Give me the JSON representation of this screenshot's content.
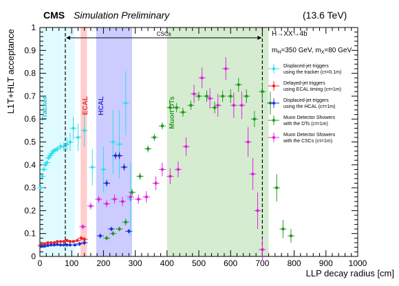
{
  "header": {
    "experiment": "CMS",
    "status": "Simulation Preliminary",
    "energy": "(13.6 TeV)"
  },
  "annotations": {
    "process": "H→XX→4b",
    "masses": "m_H=350 GeV, m_X=80 GeV",
    "cscs": "CSCs"
  },
  "regions": [
    {
      "name": "Tracker",
      "from": 0,
      "to": 110,
      "color": "#e0fbff",
      "label_color": "#2bb7c9"
    },
    {
      "name": "ECAL",
      "from": 128,
      "to": 148,
      "color": "#ffcccc",
      "label_color": "#e8323c"
    },
    {
      "name": "HCAL",
      "from": 177,
      "to": 290,
      "color": "#ccccff",
      "label_color": "#3333dd"
    },
    {
      "name": "Muon DTs",
      "from": 400,
      "to": 720,
      "color": "#d5ecd0",
      "label_color": "#2e9a2e"
    }
  ],
  "colors": {
    "tracker": "#33ddf0",
    "ecal": "#ee2222",
    "hcal": "#1f2fd6",
    "dt": "#229922",
    "csc": "#e022e0"
  },
  "chart_data": {
    "type": "scatter",
    "title": "",
    "xlabel": "LLP decay radius [cm]",
    "ylabel": "L1T+HLT acceptance",
    "xlim": [
      0,
      1000
    ],
    "ylim": [
      0,
      1
    ],
    "x_ticks": [
      0,
      100,
      200,
      300,
      400,
      500,
      600,
      700,
      800,
      900,
      1000
    ],
    "y_ticks": [
      0,
      0.1,
      0.2,
      0.3,
      0.4,
      0.5,
      0.6,
      0.7,
      0.8,
      0.9,
      1
    ],
    "csc_range": [
      80,
      700
    ],
    "legend_position": "right",
    "series": [
      {
        "name": "Displaced-jet triggers using the tracker (cτ=0.1m)",
        "color_key": "tracker",
        "points": [
          {
            "x": 2,
            "y": 0.3,
            "yerr": 0.01
          },
          {
            "x": 7,
            "y": 0.35,
            "yerr": 0.01
          },
          {
            "x": 12,
            "y": 0.38,
            "yerr": 0.01
          },
          {
            "x": 17,
            "y": 0.4,
            "yerr": 0.01
          },
          {
            "x": 22,
            "y": 0.41,
            "yerr": 0.01
          },
          {
            "x": 27,
            "y": 0.43,
            "yerr": 0.01
          },
          {
            "x": 32,
            "y": 0.44,
            "yerr": 0.01
          },
          {
            "x": 37,
            "y": 0.45,
            "yerr": 0.01
          },
          {
            "x": 43,
            "y": 0.46,
            "yerr": 0.01
          },
          {
            "x": 48,
            "y": 0.465,
            "yerr": 0.01
          },
          {
            "x": 55,
            "y": 0.47,
            "yerr": 0.012
          },
          {
            "x": 65,
            "y": 0.48,
            "yerr": 0.015
          },
          {
            "x": 75,
            "y": 0.48,
            "yerr": 0.02
          },
          {
            "x": 85,
            "y": 0.49,
            "yerr": 0.03
          },
          {
            "x": 95,
            "y": 0.5,
            "yerr": 0.04
          },
          {
            "x": 105,
            "y": 0.56,
            "yerr": 0.05
          },
          {
            "x": 120,
            "y": 0.52,
            "yerr": 0.06
          },
          {
            "x": 140,
            "y": 0.55,
            "yerr": 0.07
          },
          {
            "x": 165,
            "y": 0.39,
            "yerr": 0.08
          },
          {
            "x": 200,
            "y": 0.38,
            "yerr": 0.1
          },
          {
            "x": 230,
            "y": 0.5,
            "yerr": 0.14
          },
          {
            "x": 250,
            "y": 0.49,
            "yerr": 0.15
          },
          {
            "x": 270,
            "y": 0.67,
            "yerr": 0.14
          },
          {
            "x": 285,
            "y": 0.25,
            "yerr": 0.16
          }
        ]
      },
      {
        "name": "Delayed-jet triggers using ECAL timing (cτ=1m)",
        "color_key": "ecal",
        "points": [
          {
            "x": 5,
            "y": 0.05,
            "yerr": 0.005
          },
          {
            "x": 15,
            "y": 0.055,
            "yerr": 0.005
          },
          {
            "x": 25,
            "y": 0.06,
            "yerr": 0.005
          },
          {
            "x": 35,
            "y": 0.06,
            "yerr": 0.005
          },
          {
            "x": 45,
            "y": 0.06,
            "yerr": 0.005
          },
          {
            "x": 55,
            "y": 0.065,
            "yerr": 0.005
          },
          {
            "x": 65,
            "y": 0.065,
            "yerr": 0.005
          },
          {
            "x": 75,
            "y": 0.065,
            "yerr": 0.005
          },
          {
            "x": 85,
            "y": 0.07,
            "yerr": 0.005
          },
          {
            "x": 95,
            "y": 0.065,
            "yerr": 0.005
          },
          {
            "x": 105,
            "y": 0.065,
            "yerr": 0.005
          },
          {
            "x": 118,
            "y": 0.07,
            "yerr": 0.005
          },
          {
            "x": 130,
            "y": 0.08,
            "yerr": 0.01
          },
          {
            "x": 140,
            "y": 0.075,
            "yerr": 0.01
          }
        ]
      },
      {
        "name": "Displaced-jet triggers using the HCAL (cτ=1m)",
        "color_key": "hcal",
        "points": [
          {
            "x": 5,
            "y": 0.045,
            "yerr": 0.005
          },
          {
            "x": 15,
            "y": 0.045,
            "yerr": 0.005
          },
          {
            "x": 25,
            "y": 0.048,
            "yerr": 0.005
          },
          {
            "x": 35,
            "y": 0.05,
            "yerr": 0.005
          },
          {
            "x": 45,
            "y": 0.05,
            "yerr": 0.005
          },
          {
            "x": 55,
            "y": 0.052,
            "yerr": 0.005
          },
          {
            "x": 65,
            "y": 0.05,
            "yerr": 0.005
          },
          {
            "x": 75,
            "y": 0.05,
            "yerr": 0.005
          },
          {
            "x": 85,
            "y": 0.05,
            "yerr": 0.005
          },
          {
            "x": 95,
            "y": 0.05,
            "yerr": 0.005
          },
          {
            "x": 110,
            "y": 0.05,
            "yerr": 0.005
          },
          {
            "x": 125,
            "y": 0.055,
            "yerr": 0.01
          },
          {
            "x": 140,
            "y": 0.06,
            "yerr": 0.01
          },
          {
            "x": 190,
            "y": 0.09,
            "yerr": 0.01
          },
          {
            "x": 210,
            "y": 0.32,
            "yerr": 0.015
          },
          {
            "x": 225,
            "y": 0.12,
            "yerr": 0.01
          },
          {
            "x": 238,
            "y": 0.44,
            "yerr": 0.015
          },
          {
            "x": 250,
            "y": 0.44,
            "yerr": 0.015
          },
          {
            "x": 265,
            "y": 0.39,
            "yerr": 0.015
          },
          {
            "x": 280,
            "y": 0.11,
            "yerr": 0.01
          }
        ]
      },
      {
        "name": "Muon Detector Showers with the DTs (cτ=1m)",
        "color_key": "dt",
        "points": [
          {
            "x": 210,
            "y": 0.08,
            "yerr": 0.01
          },
          {
            "x": 230,
            "y": 0.1,
            "yerr": 0.01
          },
          {
            "x": 250,
            "y": 0.12,
            "yerr": 0.01
          },
          {
            "x": 270,
            "y": 0.15,
            "yerr": 0.015
          },
          {
            "x": 290,
            "y": 0.28,
            "yerr": 0.015
          },
          {
            "x": 315,
            "y": 0.35,
            "yerr": 0.015
          },
          {
            "x": 340,
            "y": 0.47,
            "yerr": 0.015
          },
          {
            "x": 360,
            "y": 0.52,
            "yerr": 0.015
          },
          {
            "x": 385,
            "y": 0.57,
            "yerr": 0.015
          },
          {
            "x": 410,
            "y": 0.65,
            "yerr": 0.02
          },
          {
            "x": 430,
            "y": 0.65,
            "yerr": 0.02
          },
          {
            "x": 450,
            "y": 0.63,
            "yerr": 0.02
          },
          {
            "x": 475,
            "y": 0.66,
            "yerr": 0.02
          },
          {
            "x": 500,
            "y": 0.7,
            "yerr": 0.02
          },
          {
            "x": 525,
            "y": 0.7,
            "yerr": 0.025
          },
          {
            "x": 550,
            "y": 0.65,
            "yerr": 0.025
          },
          {
            "x": 575,
            "y": 0.7,
            "yerr": 0.025
          },
          {
            "x": 600,
            "y": 0.7,
            "yerr": 0.03
          },
          {
            "x": 625,
            "y": 0.75,
            "yerr": 0.03
          },
          {
            "x": 650,
            "y": 0.7,
            "yerr": 0.03
          },
          {
            "x": 675,
            "y": 0.6,
            "yerr": 0.035
          },
          {
            "x": 700,
            "y": 0.72,
            "yerr": 0.04
          },
          {
            "x": 725,
            "y": 0.67,
            "yerr": 0.05
          },
          {
            "x": 745,
            "y": 0.3,
            "yerr": 0.06
          },
          {
            "x": 765,
            "y": 0.12,
            "yerr": 0.04
          },
          {
            "x": 790,
            "y": 0.09,
            "yerr": 0.03
          }
        ]
      },
      {
        "name": "Muon Detector Showers with the CSCs (cτ=1m)",
        "color_key": "csc",
        "points": [
          {
            "x": 135,
            "y": 0.13,
            "yerr": 0.01
          },
          {
            "x": 160,
            "y": 0.22,
            "yerr": 0.015
          },
          {
            "x": 185,
            "y": 0.25,
            "yerr": 0.015
          },
          {
            "x": 210,
            "y": 0.23,
            "yerr": 0.015
          },
          {
            "x": 235,
            "y": 0.25,
            "yerr": 0.02
          },
          {
            "x": 260,
            "y": 0.24,
            "yerr": 0.02
          },
          {
            "x": 285,
            "y": 0.26,
            "yerr": 0.02
          },
          {
            "x": 310,
            "y": 0.25,
            "yerr": 0.02
          },
          {
            "x": 335,
            "y": 0.26,
            "yerr": 0.025
          },
          {
            "x": 365,
            "y": 0.32,
            "yerr": 0.03
          },
          {
            "x": 385,
            "y": 0.38,
            "yerr": 0.03
          },
          {
            "x": 410,
            "y": 0.35,
            "yerr": 0.035
          },
          {
            "x": 435,
            "y": 0.38,
            "yerr": 0.035
          },
          {
            "x": 460,
            "y": 0.48,
            "yerr": 0.04
          },
          {
            "x": 485,
            "y": 0.71,
            "yerr": 0.04
          },
          {
            "x": 510,
            "y": 0.78,
            "yerr": 0.045
          },
          {
            "x": 535,
            "y": 0.69,
            "yerr": 0.045
          },
          {
            "x": 560,
            "y": 0.66,
            "yerr": 0.05
          },
          {
            "x": 585,
            "y": 0.82,
            "yerr": 0.05
          },
          {
            "x": 610,
            "y": 0.66,
            "yerr": 0.055
          },
          {
            "x": 635,
            "y": 0.66,
            "yerr": 0.06
          },
          {
            "x": 655,
            "y": 0.5,
            "yerr": 0.065
          },
          {
            "x": 670,
            "y": 0.36,
            "yerr": 0.07
          },
          {
            "x": 685,
            "y": 0.2,
            "yerr": 0.08
          },
          {
            "x": 700,
            "y": 0.03,
            "yerr": 0.05
          }
        ]
      }
    ]
  }
}
